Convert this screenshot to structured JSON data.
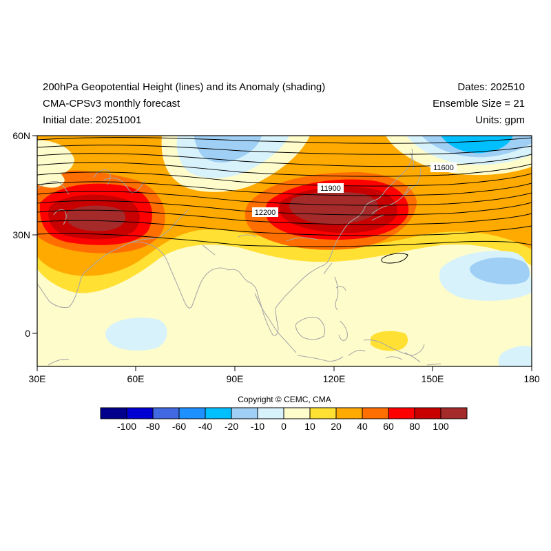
{
  "header": {
    "title": "200hPa Geopotential Height (lines) and its Anomaly (shading)",
    "model": "CMA-CPSv3 monthly forecast",
    "initial": "Initial date: 20251001",
    "dates": "Dates: 202510",
    "ensemble": "Ensemble Size = 21",
    "units": "Units: gpm"
  },
  "axes": {
    "lat_ticks": [
      "60N",
      "30N",
      "0"
    ],
    "lon_ticks": [
      "30E",
      "60E",
      "90E",
      "120E",
      "150E",
      "180"
    ]
  },
  "contour_labels": [
    "11600",
    "11900",
    "12200"
  ],
  "copyright": "Copyright © CEMC, CMA",
  "colorbar": {
    "colors": [
      "#00008c",
      "#0000d2",
      "#4169e1",
      "#1e90ff",
      "#00bfff",
      "#9fcff5",
      "#d7f2fb",
      "#fffccb",
      "#ffe033",
      "#ffaa00",
      "#ff6e00",
      "#ff0000",
      "#c80000",
      "#a52a2a"
    ],
    "labels": [
      "-100",
      "-80",
      "-60",
      "-40",
      "-20",
      "-10",
      "0",
      "10",
      "20",
      "40",
      "60",
      "80",
      "100"
    ]
  }
}
